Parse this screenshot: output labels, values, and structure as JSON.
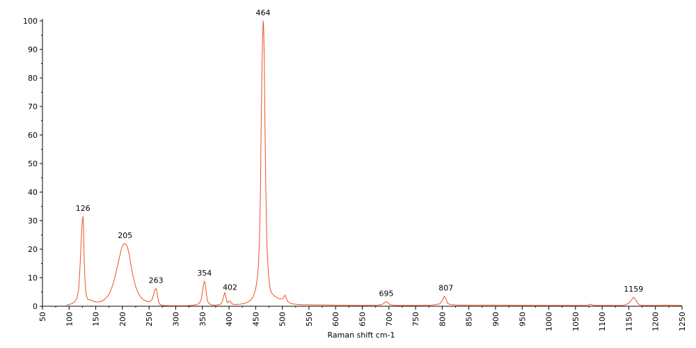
{
  "chart_data": {
    "type": "line",
    "title": "",
    "xlabel": "Raman shift cm-1",
    "ylabel": "",
    "xlim": [
      50,
      1250
    ],
    "ylim": [
      0,
      100
    ],
    "x_ticks": [
      "50",
      "100",
      "150",
      "200",
      "250",
      "300",
      "350",
      "400",
      "450",
      "500",
      "550",
      "600",
      "650",
      "700",
      "750",
      "800",
      "850",
      "900",
      "950",
      "1000",
      "1050",
      "1100",
      "1150",
      "1200",
      "1250"
    ],
    "y_ticks": [
      "0",
      "10",
      "20",
      "30",
      "40",
      "50",
      "60",
      "70",
      "80",
      "90",
      "100"
    ],
    "grid": false,
    "line_color": "#e8531f",
    "peak_labels": [
      {
        "text": "126",
        "x": 126,
        "y": 31.5
      },
      {
        "text": "205",
        "x": 205,
        "y": 22
      },
      {
        "text": "263",
        "x": 263,
        "y": 6.2
      },
      {
        "text": "354",
        "x": 354,
        "y": 8.8
      },
      {
        "text": "402",
        "x": 402,
        "y": 3.8
      },
      {
        "text": "464",
        "x": 464,
        "y": 100
      },
      {
        "text": "695",
        "x": 695,
        "y": 1.6
      },
      {
        "text": "807",
        "x": 807,
        "y": 3.5
      },
      {
        "text": "1159",
        "x": 1159,
        "y": 3.2
      }
    ],
    "series": [
      {
        "x": [
          95,
          100,
          105,
          110,
          115,
          118,
          120,
          122,
          124,
          125,
          126,
          127,
          128,
          130,
          132,
          135,
          140,
          145,
          150,
          155,
          160,
          165,
          170,
          175,
          180,
          185,
          190,
          195,
          198,
          200,
          202,
          205,
          208,
          210,
          213,
          216,
          220,
          225,
          230,
          235,
          240,
          245,
          250,
          253,
          256,
          258,
          260,
          262,
          263,
          264,
          266,
          268,
          270,
          275,
          280,
          290,
          300,
          310,
          320,
          330,
          340,
          345,
          348,
          350,
          352,
          354,
          356,
          358,
          360,
          365,
          370,
          375,
          380,
          385,
          388,
          390,
          392,
          394,
          396,
          398,
          400,
          402,
          404,
          406,
          410,
          420,
          430,
          440,
          445,
          450,
          453,
          455,
          457,
          459,
          460,
          461,
          462,
          463,
          464,
          465,
          466,
          467,
          469,
          471,
          474,
          477,
          480,
          485,
          490,
          495,
          500,
          503,
          505,
          507,
          510,
          515,
          520,
          530,
          540,
          550,
          600,
          650,
          680,
          688,
          692,
          695,
          698,
          702,
          710,
          750,
          780,
          795,
          800,
          804,
          807,
          810,
          815,
          820,
          830,
          860,
          900,
          950,
          1000,
          1050,
          1070,
          1078,
          1085,
          1100,
          1140,
          1150,
          1155,
          1159,
          1163,
          1167,
          1172,
          1180,
          1200,
          1220,
          1235,
          1250
        ],
        "values": [
          0.4,
          0.6,
          0.9,
          1.5,
          3,
          6,
          12,
          20,
          28,
          30,
          31.5,
          28,
          18,
          8,
          4,
          2.4,
          2.2,
          1.8,
          1.5,
          1.5,
          1.7,
          2.2,
          3,
          4.2,
          6.5,
          9.5,
          13.5,
          17.5,
          20,
          21,
          21.8,
          22,
          21.3,
          20.3,
          18,
          14.5,
          10.5,
          6.8,
          4.5,
          3,
          2.2,
          1.8,
          1.6,
          1.8,
          2.5,
          3.8,
          5.2,
          6,
          6.2,
          5.8,
          3.5,
          1.6,
          0.7,
          0.35,
          0.25,
          0.2,
          0.2,
          0.2,
          0.2,
          0.3,
          0.6,
          1.2,
          2.5,
          5,
          7.5,
          8.8,
          7,
          3.8,
          1.6,
          0.6,
          0.4,
          0.4,
          0.5,
          0.8,
          2,
          3.6,
          4.8,
          3.5,
          1.6,
          1.2,
          1.8,
          1.9,
          1.3,
          0.8,
          0.6,
          0.7,
          1,
          2,
          3.2,
          6,
          9.5,
          14,
          22,
          40,
          58,
          72,
          85,
          94,
          100,
          98,
          88,
          70,
          42,
          22,
          11,
          6.2,
          4.6,
          3.6,
          3,
          2.6,
          2.6,
          3.2,
          3.9,
          3,
          1.7,
          1,
          0.8,
          0.6,
          0.5,
          0.5,
          0.4,
          0.3,
          0.4,
          0.7,
          1.3,
          1.6,
          1.3,
          0.6,
          0.3,
          0.3,
          0.4,
          0.8,
          1.9,
          3.5,
          2.8,
          1,
          0.6,
          0.5,
          0.4,
          0.4,
          0.4,
          0.35,
          0.3,
          0.3,
          0.3,
          0.7,
          0.3,
          0.3,
          0.3,
          1,
          2.2,
          3.2,
          2.2,
          0.9,
          0.4,
          0.3,
          0.3,
          0.4,
          0.3,
          0.3
        ]
      }
    ]
  }
}
